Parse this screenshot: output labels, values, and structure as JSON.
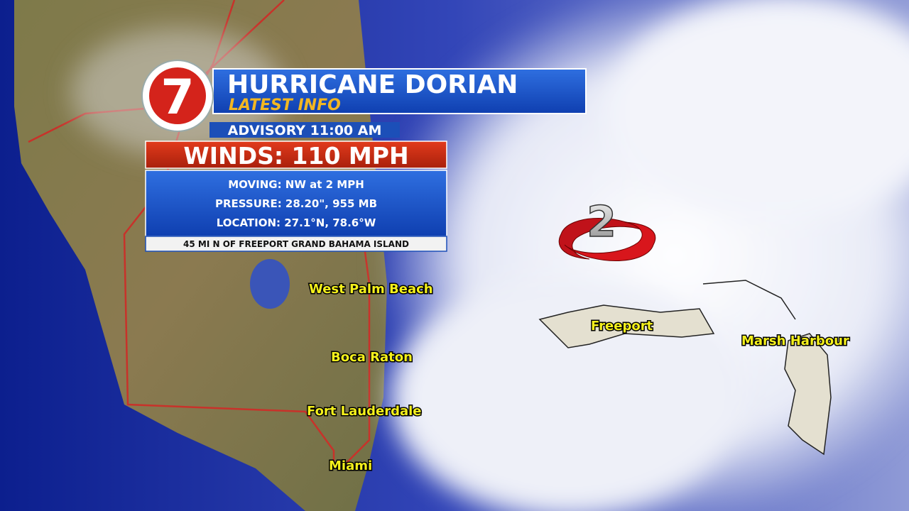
{
  "header": {
    "logo": "7",
    "title": "HURRICANE DORIAN",
    "subtitle": "LATEST INFO"
  },
  "advisory": "ADVISORY 11:00 AM",
  "winds": "WINDS: 110 MPH",
  "details": [
    "MOVING:  NW at 2 MPH",
    "PRESSURE: 28.20\",  955 MB",
    "LOCATION: 27.1°N, 78.6°W"
  ],
  "position": "45 MI N OF FREEPORT GRAND BAHAMA ISLAND",
  "storm": {
    "category": "2"
  },
  "labels": [
    "West Palm Beach",
    "Boca Raton",
    "Fort Lauderdale",
    "Miami",
    "Freeport",
    "Marsh Harbour"
  ]
}
